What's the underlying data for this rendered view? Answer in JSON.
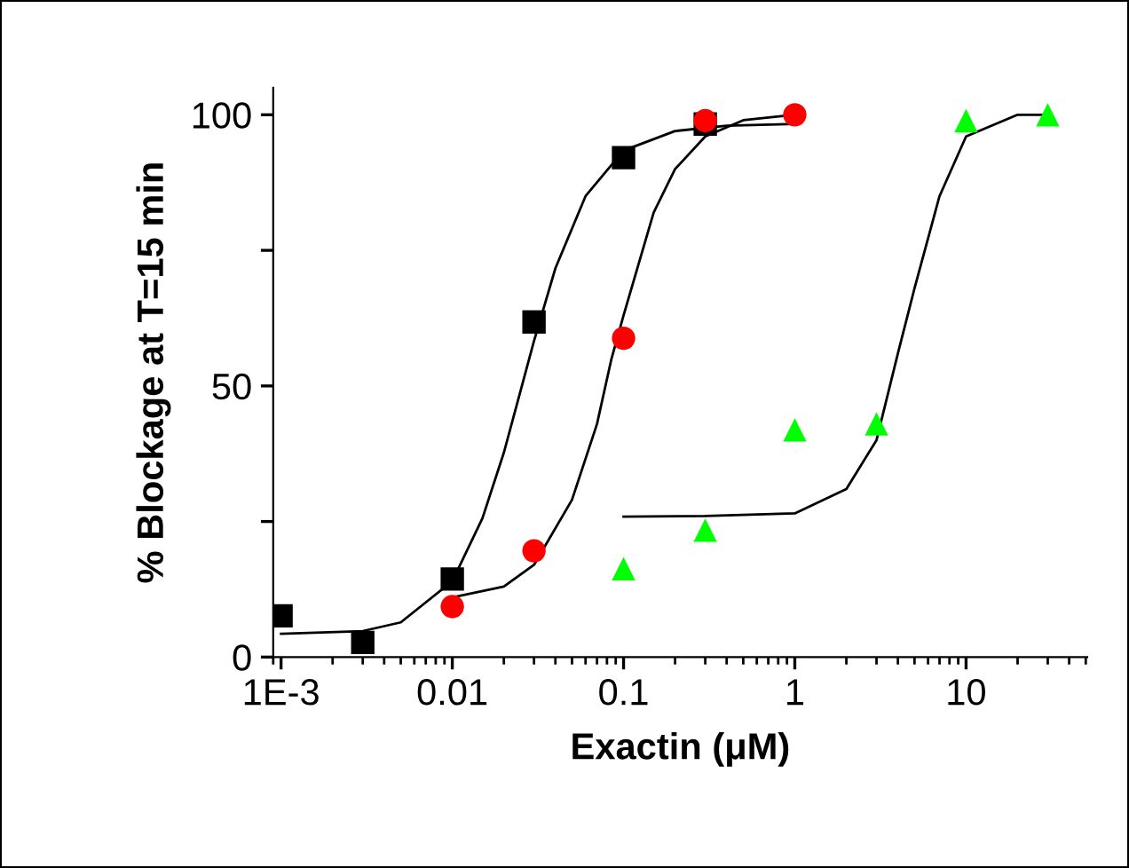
{
  "chart_data": {
    "type": "scatter",
    "xlabel": "Exactin (μM)",
    "ylabel": "% Blockage at T=15 min",
    "log": "x",
    "xlim": [
      0.0009,
      51
    ],
    "xticks": [
      {
        "value": 0.001,
        "label": "1E-3"
      },
      0.01,
      0.1,
      1,
      10
    ],
    "ylim": [
      0,
      105
    ],
    "yticks": [
      0,
      {
        "value": 25,
        "label": null
      },
      50,
      {
        "value": 75,
        "label": null
      },
      100
    ],
    "grid": false,
    "series": [
      {
        "type": "line",
        "color": "#000000",
        "marker": "none",
        "x": [
          0.001,
          0.003,
          0.005,
          0.01,
          0.015,
          0.02,
          0.026,
          0.03,
          0.04,
          0.06,
          0.1,
          0.2,
          0.4,
          1
        ],
        "values": [
          4.3,
          4.8,
          6.4,
          14,
          25.6,
          37.7,
          51,
          58.3,
          71.7,
          85,
          93.4,
          97,
          98,
          98.3
        ]
      },
      {
        "type": "line",
        "color": "#000000",
        "marker": "none",
        "x": [
          0.01,
          0.02,
          0.03,
          0.05,
          0.07,
          0.085,
          0.1,
          0.15,
          0.2,
          0.3,
          0.5,
          1
        ],
        "values": [
          11,
          13,
          17,
          29,
          43,
          55,
          63,
          82,
          90,
          96,
          99,
          100
        ]
      },
      {
        "type": "line",
        "color": "#000000",
        "marker": "none",
        "x": [
          0.1,
          0.3,
          1,
          2,
          3,
          4,
          5,
          7,
          10,
          20,
          30
        ],
        "values": [
          25.9,
          26,
          26.5,
          31,
          40,
          56,
          68,
          85,
          96,
          100,
          100
        ]
      },
      {
        "color": "#000000",
        "marker": "square",
        "x": [
          0.001,
          0.003,
          0.01,
          0.03,
          0.1,
          0.3
        ],
        "values": [
          7.6,
          2.7,
          14.4,
          61.8,
          92.1,
          98.3
        ]
      },
      {
        "color": "#ff0000",
        "marker": "circle",
        "x": [
          0.01,
          0.03,
          0.1,
          0.3,
          1
        ],
        "values": [
          9.3,
          19.6,
          58.8,
          98.9,
          100
        ]
      },
      {
        "color": "#00ff00",
        "marker": "triangle",
        "x": [
          0.1,
          0.3,
          1,
          3,
          10,
          30
        ],
        "values": [
          16.3,
          23.4,
          41.9,
          43,
          98.9,
          100
        ]
      }
    ]
  }
}
